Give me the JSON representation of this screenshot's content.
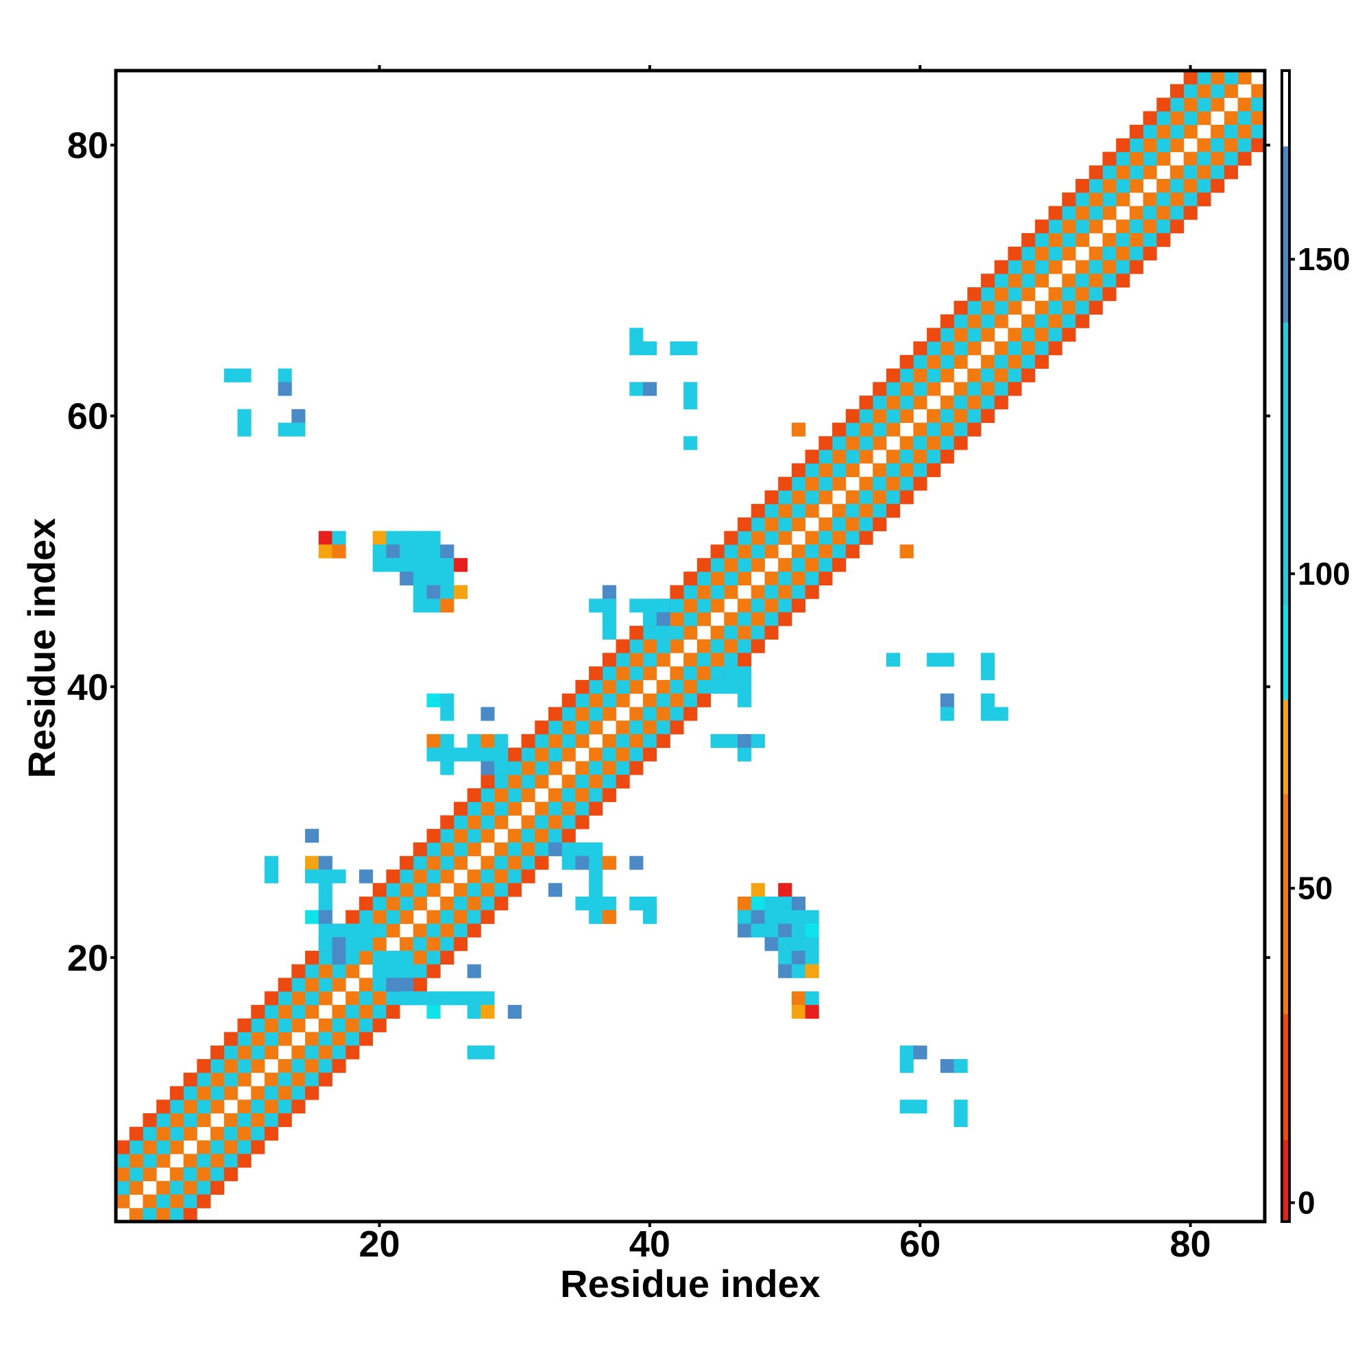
{
  "chart_data": {
    "type": "heatmap",
    "title": "",
    "xlabel": "Residue index",
    "ylabel": "Residue index",
    "xlim": [
      0.5,
      85.5
    ],
    "ylim": [
      0.5,
      85.5
    ],
    "x_ticks": [
      20,
      40,
      60,
      80
    ],
    "x_tick_labels": [
      "20",
      "40",
      "60",
      "80"
    ],
    "y_ticks": [
      20,
      40,
      60,
      80
    ],
    "y_tick_labels": [
      "20",
      "40",
      "60",
      "80"
    ],
    "colorbar": {
      "range": [
        -3,
        180
      ],
      "ticks": [
        0,
        50,
        100,
        150
      ],
      "tick_labels": [
        "0",
        "50",
        "100",
        "150"
      ],
      "bands": [
        {
          "from": -3,
          "to": 10,
          "color": "#e8201c"
        },
        {
          "from": 10,
          "to": 30,
          "color": "#ee4a10"
        },
        {
          "from": 30,
          "to": 65,
          "color": "#f37a0f"
        },
        {
          "from": 65,
          "to": 80,
          "color": "#f5a30e"
        },
        {
          "from": 80,
          "to": 95,
          "color": "#0ee3ec"
        },
        {
          "from": 95,
          "to": 140,
          "color": "#20cce3"
        },
        {
          "from": 140,
          "to": 168,
          "color": "#4a8ac6"
        },
        {
          "from": 168,
          "to": 180,
          "color": "#ffffff"
        }
      ]
    },
    "grid": false,
    "diagonal": {
      "ranges": [
        [
          1,
          85
        ]
      ],
      "offsets": [
        {
          "offset": 1,
          "color": "#f37a0f"
        },
        {
          "offset": 2,
          "color": "#20cce3"
        },
        {
          "offset": 3,
          "color": "#f37a0f"
        },
        {
          "offset": 4,
          "color": "#20cce3"
        },
        {
          "offset": 5,
          "color": "#ee4a10"
        }
      ]
    },
    "cells": [
      [
        9,
        63,
        "#20cce3"
      ],
      [
        10,
        63,
        "#20cce3"
      ],
      [
        13,
        63,
        "#20cce3"
      ],
      [
        13,
        62,
        "#4a8ac6"
      ],
      [
        10,
        60,
        "#20cce3"
      ],
      [
        10,
        59,
        "#20cce3"
      ],
      [
        14,
        60,
        "#4a8ac6"
      ],
      [
        13,
        59,
        "#20cce3"
      ],
      [
        14,
        59,
        "#20cce3"
      ],
      [
        39,
        66,
        "#20cce3"
      ],
      [
        39,
        65,
        "#20cce3"
      ],
      [
        40,
        65,
        "#20cce3"
      ],
      [
        42,
        65,
        "#20cce3"
      ],
      [
        43,
        65,
        "#20cce3"
      ],
      [
        39,
        62,
        "#20cce3"
      ],
      [
        40,
        62,
        "#4a8ac6"
      ],
      [
        43,
        62,
        "#20cce3"
      ],
      [
        43,
        61,
        "#20cce3"
      ],
      [
        43,
        58,
        "#20cce3"
      ],
      [
        51,
        59,
        "#f37a0f"
      ],
      [
        59,
        50,
        "#f37a0f"
      ],
      [
        16,
        51,
        "#e8201c"
      ],
      [
        17,
        51,
        "#20cce3"
      ],
      [
        16,
        50,
        "#f5a30e"
      ],
      [
        17,
        50,
        "#f37a0f"
      ],
      [
        20,
        51,
        "#f5a30e"
      ],
      [
        21,
        51,
        "#20cce3"
      ],
      [
        22,
        51,
        "#20cce3"
      ],
      [
        23,
        51,
        "#20cce3"
      ],
      [
        24,
        51,
        "#20cce3"
      ],
      [
        20,
        50,
        "#20cce3"
      ],
      [
        21,
        50,
        "#4a8ac6"
      ],
      [
        22,
        50,
        "#20cce3"
      ],
      [
        23,
        50,
        "#20cce3"
      ],
      [
        24,
        50,
        "#20cce3"
      ],
      [
        25,
        50,
        "#4a8ac6"
      ],
      [
        20,
        49,
        "#20cce3"
      ],
      [
        21,
        49,
        "#20cce3"
      ],
      [
        22,
        49,
        "#20cce3"
      ],
      [
        23,
        49,
        "#20cce3"
      ],
      [
        24,
        49,
        "#20cce3"
      ],
      [
        25,
        49,
        "#20cce3"
      ],
      [
        26,
        49,
        "#e8201c"
      ],
      [
        22,
        48,
        "#4a8ac6"
      ],
      [
        23,
        48,
        "#20cce3"
      ],
      [
        24,
        48,
        "#20cce3"
      ],
      [
        25,
        48,
        "#20cce3"
      ],
      [
        23,
        47,
        "#20cce3"
      ],
      [
        24,
        47,
        "#4a8ac6"
      ],
      [
        25,
        47,
        "#20cce3"
      ],
      [
        26,
        47,
        "#f5a30e"
      ],
      [
        23,
        46,
        "#20cce3"
      ],
      [
        24,
        46,
        "#20cce3"
      ],
      [
        25,
        46,
        "#f37a0f"
      ],
      [
        37,
        47,
        "#4a8ac6"
      ],
      [
        36,
        46,
        "#20cce3"
      ],
      [
        37,
        46,
        "#20cce3"
      ],
      [
        39,
        46,
        "#20cce3"
      ],
      [
        40,
        46,
        "#20cce3"
      ],
      [
        41,
        46,
        "#20cce3"
      ],
      [
        37,
        45,
        "#20cce3"
      ],
      [
        40,
        45,
        "#20cce3"
      ],
      [
        41,
        45,
        "#4a8ac6"
      ],
      [
        37,
        44,
        "#20cce3"
      ],
      [
        41,
        44,
        "#20cce3"
      ],
      [
        58,
        42,
        "#20cce3"
      ],
      [
        61,
        42,
        "#20cce3"
      ],
      [
        62,
        42,
        "#20cce3"
      ],
      [
        65,
        42,
        "#20cce3"
      ],
      [
        65,
        41,
        "#20cce3"
      ],
      [
        62,
        39,
        "#4a8ac6"
      ],
      [
        65,
        39,
        "#20cce3"
      ],
      [
        62,
        38,
        "#20cce3"
      ],
      [
        65,
        38,
        "#20cce3"
      ],
      [
        66,
        38,
        "#20cce3"
      ],
      [
        24,
        39,
        "#0ee3ec"
      ],
      [
        25,
        39,
        "#20cce3"
      ],
      [
        25,
        38,
        "#20cce3"
      ],
      [
        28,
        38,
        "#4a8ac6"
      ],
      [
        24,
        36,
        "#f37a0f"
      ],
      [
        25,
        36,
        "#20cce3"
      ],
      [
        27,
        36,
        "#20cce3"
      ],
      [
        28,
        36,
        "#f37a0f"
      ],
      [
        29,
        36,
        "#20cce3"
      ],
      [
        24,
        35,
        "#20cce3"
      ],
      [
        25,
        35,
        "#20cce3"
      ],
      [
        26,
        35,
        "#20cce3"
      ],
      [
        27,
        35,
        "#20cce3"
      ],
      [
        28,
        35,
        "#20cce3"
      ],
      [
        29,
        35,
        "#20cce3"
      ],
      [
        25,
        34,
        "#20cce3"
      ],
      [
        28,
        34,
        "#4a8ac6"
      ],
      [
        29,
        34,
        "#20cce3"
      ],
      [
        46,
        41,
        "#20cce3"
      ],
      [
        47,
        41,
        "#20cce3"
      ],
      [
        45,
        40,
        "#20cce3"
      ],
      [
        46,
        40,
        "#20cce3"
      ],
      [
        47,
        40,
        "#20cce3"
      ],
      [
        47,
        39,
        "#20cce3"
      ],
      [
        45,
        36,
        "#20cce3"
      ],
      [
        46,
        36,
        "#20cce3"
      ],
      [
        47,
        36,
        "#4a8ac6"
      ],
      [
        48,
        36,
        "#20cce3"
      ],
      [
        47,
        35,
        "#20cce3"
      ],
      [
        15,
        29,
        "#4a8ac6"
      ],
      [
        12,
        27,
        "#20cce3"
      ],
      [
        15,
        27,
        "#f5a30e"
      ],
      [
        16,
        27,
        "#4a8ac6"
      ],
      [
        12,
        26,
        "#20cce3"
      ],
      [
        15,
        26,
        "#20cce3"
      ],
      [
        16,
        26,
        "#20cce3"
      ],
      [
        17,
        26,
        "#20cce3"
      ],
      [
        19,
        26,
        "#4a8ac6"
      ],
      [
        16,
        25,
        "#20cce3"
      ],
      [
        16,
        24,
        "#20cce3"
      ],
      [
        15,
        23,
        "#0ee3ec"
      ],
      [
        16,
        23,
        "#4a8ac6"
      ],
      [
        16,
        22,
        "#20cce3"
      ],
      [
        17,
        22,
        "#20cce3"
      ],
      [
        18,
        22,
        "#20cce3"
      ],
      [
        19,
        22,
        "#20cce3"
      ],
      [
        20,
        22,
        "#20cce3"
      ],
      [
        16,
        21,
        "#20cce3"
      ],
      [
        17,
        21,
        "#4a8ac6"
      ],
      [
        18,
        21,
        "#20cce3"
      ],
      [
        19,
        21,
        "#20cce3"
      ],
      [
        17,
        20,
        "#4a8ac6"
      ],
      [
        18,
        20,
        "#20cce3"
      ],
      [
        20,
        20,
        "#20cce3"
      ],
      [
        21,
        20,
        "#20cce3"
      ],
      [
        22,
        20,
        "#20cce3"
      ],
      [
        20,
        19,
        "#20cce3"
      ],
      [
        21,
        19,
        "#20cce3"
      ],
      [
        22,
        19,
        "#20cce3"
      ],
      [
        21,
        18,
        "#4a8ac6"
      ],
      [
        22,
        18,
        "#4a8ac6"
      ],
      [
        22,
        17,
        "#20cce3"
      ],
      [
        23,
        17,
        "#20cce3"
      ],
      [
        24,
        17,
        "#20cce3"
      ],
      [
        25,
        17,
        "#20cce3"
      ],
      [
        26,
        17,
        "#20cce3"
      ],
      [
        27,
        17,
        "#20cce3"
      ],
      [
        28,
        17,
        "#20cce3"
      ],
      [
        24,
        16,
        "#0ee3ec"
      ],
      [
        27,
        16,
        "#20cce3"
      ],
      [
        28,
        16,
        "#f5a30e"
      ],
      [
        30,
        16,
        "#4a8ac6"
      ],
      [
        27,
        19,
        "#4a8ac6"
      ],
      [
        27,
        13,
        "#20cce3"
      ],
      [
        28,
        13,
        "#20cce3"
      ],
      [
        33,
        28,
        "#4a8ac6"
      ],
      [
        34,
        28,
        "#20cce3"
      ],
      [
        35,
        28,
        "#20cce3"
      ],
      [
        36,
        28,
        "#20cce3"
      ],
      [
        34,
        27,
        "#20cce3"
      ],
      [
        35,
        27,
        "#4a8ac6"
      ],
      [
        36,
        27,
        "#20cce3"
      ],
      [
        37,
        27,
        "#f37a0f"
      ],
      [
        39,
        27,
        "#4a8ac6"
      ],
      [
        36,
        26,
        "#20cce3"
      ],
      [
        33,
        25,
        "#4a8ac6"
      ],
      [
        36,
        25,
        "#20cce3"
      ],
      [
        35,
        24,
        "#20cce3"
      ],
      [
        36,
        24,
        "#20cce3"
      ],
      [
        37,
        24,
        "#20cce3"
      ],
      [
        39,
        24,
        "#20cce3"
      ],
      [
        40,
        24,
        "#20cce3"
      ],
      [
        36,
        23,
        "#20cce3"
      ],
      [
        37,
        23,
        "#f37a0f"
      ],
      [
        40,
        23,
        "#20cce3"
      ],
      [
        48,
        25,
        "#f5a30e"
      ],
      [
        50,
        25,
        "#e8201c"
      ],
      [
        47,
        24,
        "#f37a0f"
      ],
      [
        48,
        24,
        "#0ee3ec"
      ],
      [
        49,
        24,
        "#20cce3"
      ],
      [
        50,
        24,
        "#20cce3"
      ],
      [
        51,
        24,
        "#4a8ac6"
      ],
      [
        47,
        23,
        "#20cce3"
      ],
      [
        48,
        23,
        "#4a8ac6"
      ],
      [
        49,
        23,
        "#20cce3"
      ],
      [
        50,
        23,
        "#20cce3"
      ],
      [
        51,
        23,
        "#20cce3"
      ],
      [
        52,
        23,
        "#20cce3"
      ],
      [
        47,
        22,
        "#4a8ac6"
      ],
      [
        48,
        22,
        "#20cce3"
      ],
      [
        49,
        22,
        "#20cce3"
      ],
      [
        50,
        22,
        "#4a8ac6"
      ],
      [
        51,
        22,
        "#20cce3"
      ],
      [
        52,
        22,
        "#0ee3ec"
      ],
      [
        49,
        21,
        "#4a8ac6"
      ],
      [
        50,
        21,
        "#20cce3"
      ],
      [
        51,
        21,
        "#20cce3"
      ],
      [
        52,
        21,
        "#20cce3"
      ],
      [
        50,
        20,
        "#20cce3"
      ],
      [
        51,
        20,
        "#4a8ac6"
      ],
      [
        52,
        20,
        "#20cce3"
      ],
      [
        50,
        19,
        "#4a8ac6"
      ],
      [
        51,
        19,
        "#20cce3"
      ],
      [
        52,
        19,
        "#f5a30e"
      ],
      [
        51,
        17,
        "#f37a0f"
      ],
      [
        52,
        17,
        "#20cce3"
      ],
      [
        51,
        16,
        "#f5a30e"
      ],
      [
        52,
        16,
        "#e8201c"
      ],
      [
        59,
        13,
        "#20cce3"
      ],
      [
        60,
        13,
        "#4a8ac6"
      ],
      [
        59,
        12,
        "#20cce3"
      ],
      [
        62,
        12,
        "#4a8ac6"
      ],
      [
        63,
        12,
        "#20cce3"
      ],
      [
        59,
        9,
        "#20cce3"
      ],
      [
        60,
        9,
        "#20cce3"
      ],
      [
        63,
        9,
        "#20cce3"
      ],
      [
        63,
        8,
        "#20cce3"
      ]
    ]
  }
}
